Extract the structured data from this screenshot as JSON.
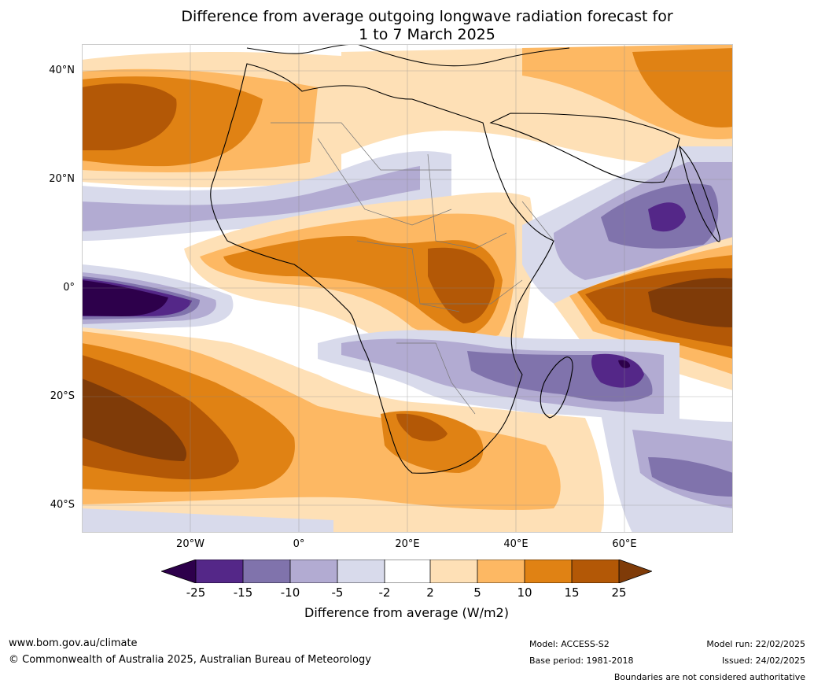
{
  "title_line1": "Difference from average outgoing longwave radiation forecast for",
  "title_line2": "1 to 7 March 2025",
  "map": {
    "lat_labels": [
      "40°N",
      "20°N",
      "0°",
      "20°S",
      "40°S"
    ],
    "lon_labels": [
      "20°W",
      "0°",
      "20°E",
      "40°E",
      "60°E"
    ]
  },
  "colorbar": {
    "ticks": [
      "-25",
      "-15",
      "-10",
      "-5",
      "-2",
      "2",
      "5",
      "10",
      "15",
      "25"
    ],
    "colors": {
      "lt_neg25": "#2d004b",
      "neg25_neg15": "#542788",
      "neg15_neg10": "#8073ac",
      "neg10_neg5": "#b2abd2",
      "neg5_neg2": "#d8daeb",
      "neg2_2": "#ffffff",
      "p2_5": "#fee0b6",
      "p5_10": "#fdb863",
      "p10_15": "#e08214",
      "p15_25": "#b35806",
      "gt_25": "#7f3b08"
    },
    "label": "Difference from average (W/m2)"
  },
  "footer": {
    "website": "www.bom.gov.au/climate",
    "copyright": "© Commonwealth of Australia 2025, Australian Bureau of Meteorology",
    "model": "Model: ACCESS-S2",
    "base_period": "Base period: 1981-2018",
    "model_run": "Model run: 22/02/2025",
    "issued": "Issued: 24/02/2025",
    "disclaimer": "Boundaries are not considered authoritative"
  }
}
